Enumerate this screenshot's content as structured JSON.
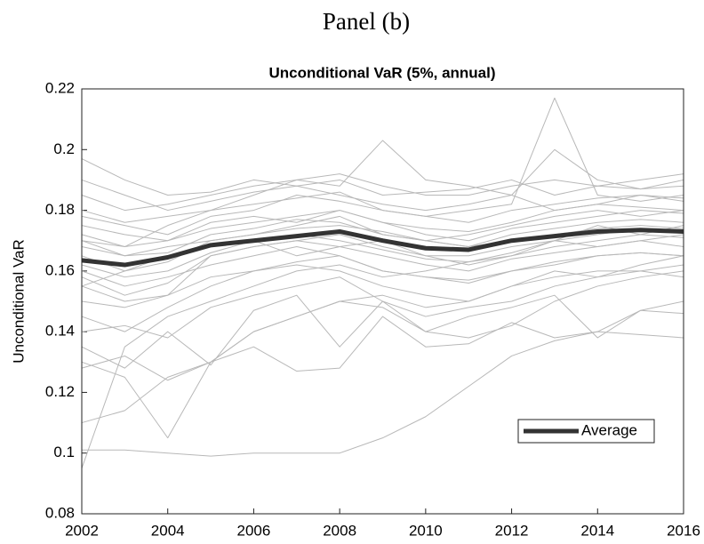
{
  "page_title": "Panel (b)",
  "chart_data": {
    "type": "line",
    "title": "Unconditional VaR (5%, annual)",
    "ylabel": "Unconditional VaR",
    "x": [
      2002,
      2003,
      2004,
      2005,
      2006,
      2007,
      2008,
      2009,
      2010,
      2011,
      2012,
      2013,
      2014,
      2015,
      2016
    ],
    "xlim": [
      2002,
      2016
    ],
    "xticks": [
      2002,
      2004,
      2006,
      2008,
      2010,
      2012,
      2014,
      2016
    ],
    "ylim": [
      0.08,
      0.22
    ],
    "yticks": [
      0.08,
      0.1,
      0.12,
      0.14,
      0.16,
      0.18,
      0.2,
      0.22
    ],
    "grid": false,
    "legend": "lower right",
    "series": [
      {
        "color": "#b8b8b8",
        "values": [
          0.197,
          0.19,
          0.185,
          0.186,
          0.19,
          0.188,
          0.19,
          0.185,
          0.186,
          0.187,
          0.19,
          0.185,
          0.188,
          0.19,
          0.192
        ]
      },
      {
        "color": "#b8b8b8",
        "values": [
          0.101,
          0.101,
          0.1,
          0.099,
          0.1,
          0.1,
          0.1,
          0.105,
          0.112,
          0.122,
          0.132,
          0.137,
          0.14,
          0.139,
          0.138
        ]
      },
      {
        "color": "#b8b8b8",
        "values": [
          0.095,
          0.135,
          0.145,
          0.15,
          0.155,
          0.16,
          0.162,
          0.158,
          0.16,
          0.163,
          0.165,
          0.17,
          0.168,
          0.17,
          0.172
        ]
      },
      {
        "color": "#b8b8b8",
        "values": [
          0.178,
          0.175,
          0.172,
          0.178,
          0.18,
          0.185,
          0.183,
          0.18,
          0.178,
          0.18,
          0.182,
          0.217,
          0.185,
          0.183,
          0.185
        ]
      },
      {
        "color": "#b8b8b8",
        "values": [
          0.17,
          0.168,
          0.175,
          0.18,
          0.185,
          0.19,
          0.188,
          0.203,
          0.19,
          0.188,
          0.185,
          0.18,
          0.182,
          0.185,
          0.183
        ]
      },
      {
        "color": "#b8b8b8",
        "values": [
          0.11,
          0.114,
          0.125,
          0.13,
          0.14,
          0.145,
          0.15,
          0.148,
          0.14,
          0.138,
          0.142,
          0.15,
          0.155,
          0.158,
          0.16
        ]
      },
      {
        "color": "#b8b8b8",
        "values": [
          0.128,
          0.132,
          0.124,
          0.13,
          0.135,
          0.127,
          0.128,
          0.145,
          0.135,
          0.136,
          0.143,
          0.138,
          0.14,
          0.147,
          0.15
        ]
      },
      {
        "color": "#b8b8b8",
        "values": [
          0.155,
          0.15,
          0.152,
          0.165,
          0.168,
          0.17,
          0.172,
          0.168,
          0.165,
          0.162,
          0.165,
          0.168,
          0.17,
          0.172,
          0.171
        ]
      },
      {
        "color": "#b8b8b8",
        "values": [
          0.165,
          0.16,
          0.163,
          0.17,
          0.172,
          0.175,
          0.178,
          0.172,
          0.17,
          0.172,
          0.175,
          0.178,
          0.18,
          0.178,
          0.18
        ]
      },
      {
        "color": "#b8b8b8",
        "values": [
          0.175,
          0.172,
          0.17,
          0.176,
          0.178,
          0.176,
          0.18,
          0.176,
          0.174,
          0.173,
          0.176,
          0.18,
          0.182,
          0.181,
          0.18
        ]
      },
      {
        "color": "#b8b8b8",
        "values": [
          0.16,
          0.155,
          0.158,
          0.162,
          0.165,
          0.168,
          0.165,
          0.16,
          0.158,
          0.157,
          0.16,
          0.162,
          0.165,
          0.166,
          0.165
        ]
      },
      {
        "color": "#b8b8b8",
        "values": [
          0.15,
          0.148,
          0.152,
          0.158,
          0.16,
          0.162,
          0.16,
          0.155,
          0.152,
          0.15,
          0.155,
          0.158,
          0.16,
          0.16,
          0.158
        ]
      },
      {
        "color": "#b8b8b8",
        "values": [
          0.185,
          0.18,
          0.182,
          0.185,
          0.188,
          0.19,
          0.192,
          0.188,
          0.185,
          0.185,
          0.188,
          0.19,
          0.188,
          0.187,
          0.19
        ]
      },
      {
        "color": "#b8b8b8",
        "values": [
          0.168,
          0.165,
          0.166,
          0.172,
          0.174,
          0.177,
          0.176,
          0.172,
          0.17,
          0.168,
          0.172,
          0.174,
          0.176,
          0.177,
          0.176
        ]
      },
      {
        "color": "#b8b8b8",
        "values": [
          0.14,
          0.142,
          0.138,
          0.148,
          0.152,
          0.155,
          0.158,
          0.15,
          0.145,
          0.148,
          0.15,
          0.155,
          0.158,
          0.16,
          0.162
        ]
      },
      {
        "color": "#b8b8b8",
        "values": [
          0.172,
          0.168,
          0.17,
          0.174,
          0.176,
          0.178,
          0.18,
          0.176,
          0.172,
          0.17,
          0.174,
          0.176,
          0.178,
          0.18,
          0.179
        ]
      },
      {
        "color": "#b8b8b8",
        "values": [
          0.13,
          0.125,
          0.105,
          0.13,
          0.14,
          0.145,
          0.15,
          0.152,
          0.148,
          0.15,
          0.155,
          0.16,
          0.158,
          0.162,
          0.165
        ]
      },
      {
        "color": "#b8b8b8",
        "values": [
          0.158,
          0.152,
          0.156,
          0.165,
          0.168,
          0.17,
          0.168,
          0.165,
          0.162,
          0.16,
          0.164,
          0.166,
          0.168,
          0.17,
          0.168
        ]
      },
      {
        "color": "#b8b8b8",
        "values": [
          0.18,
          0.176,
          0.178,
          0.18,
          0.182,
          0.184,
          0.186,
          0.18,
          0.178,
          0.176,
          0.18,
          0.182,
          0.184,
          0.185,
          0.184
        ]
      },
      {
        "color": "#b8b8b8",
        "values": [
          0.162,
          0.158,
          0.16,
          0.166,
          0.17,
          0.172,
          0.17,
          0.167,
          0.164,
          0.163,
          0.166,
          0.17,
          0.172,
          0.174,
          0.173
        ]
      },
      {
        "color": "#b8b8b8",
        "values": [
          0.145,
          0.14,
          0.148,
          0.155,
          0.16,
          0.163,
          0.165,
          0.16,
          0.158,
          0.156,
          0.16,
          0.163,
          0.165,
          0.166,
          0.165
        ]
      },
      {
        "color": "#b8b8b8",
        "values": [
          0.19,
          0.185,
          0.18,
          0.183,
          0.186,
          0.188,
          0.185,
          0.182,
          0.18,
          0.182,
          0.185,
          0.2,
          0.19,
          0.187,
          0.188
        ]
      },
      {
        "color": "#b8b8b8",
        "values": [
          0.135,
          0.128,
          0.14,
          0.129,
          0.147,
          0.152,
          0.135,
          0.15,
          0.14,
          0.145,
          0.148,
          0.152,
          0.138,
          0.147,
          0.146
        ]
      },
      {
        "color": "#b8b8b8",
        "values": [
          0.17,
          0.165,
          0.168,
          0.17,
          0.172,
          0.174,
          0.175,
          0.173,
          0.17,
          0.168,
          0.17,
          0.172,
          0.174,
          0.175,
          0.174
        ]
      },
      {
        "color": "#b8b8b8",
        "values": [
          0.155,
          0.16,
          0.165,
          0.168,
          0.17,
          0.165,
          0.168,
          0.17,
          0.165,
          0.165,
          0.168,
          0.17,
          0.175,
          0.172,
          0.175
        ]
      },
      {
        "name": "Average",
        "color": "#333333",
        "values": [
          0.1635,
          0.162,
          0.1645,
          0.1685,
          0.17,
          0.1715,
          0.173,
          0.17,
          0.1675,
          0.167,
          0.17,
          0.1715,
          0.173,
          0.1735,
          0.173
        ]
      }
    ]
  }
}
